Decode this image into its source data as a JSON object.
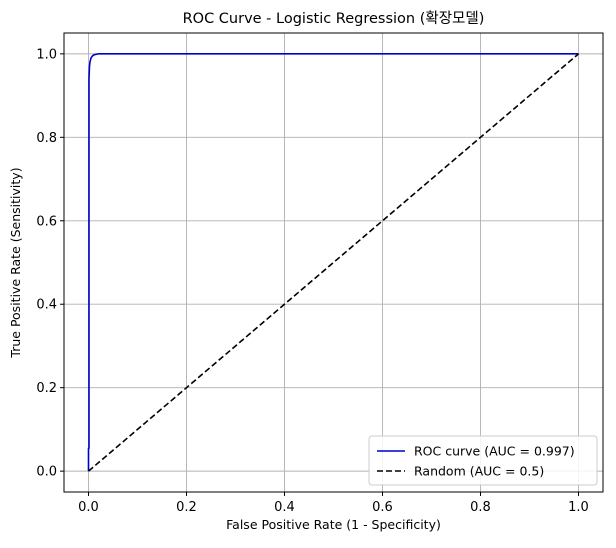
{
  "chart_data": {
    "type": "line",
    "title": "ROC Curve - Logistic Regression (확장모델)",
    "xlabel": "False Positive Rate (1 - Specificity)",
    "ylabel": "True Positive Rate (Sensitivity)",
    "xlim": [
      -0.05,
      1.05
    ],
    "ylim": [
      -0.05,
      1.05
    ],
    "xticks": [
      0.0,
      0.2,
      0.4,
      0.6,
      0.8,
      1.0
    ],
    "yticks": [
      0.0,
      0.2,
      0.4,
      0.6,
      0.8,
      1.0
    ],
    "xtick_labels": [
      "0.0",
      "0.2",
      "0.4",
      "0.6",
      "0.8",
      "1.0"
    ],
    "ytick_labels": [
      "0.0",
      "0.2",
      "0.4",
      "0.6",
      "0.8",
      "1.0"
    ],
    "grid": true,
    "legend_position": "lower-right",
    "series": [
      {
        "name": "ROC curve (AUC = 0.997)",
        "color": "#0000cc",
        "style": "solid",
        "x": [
          0.0,
          0.0,
          0.001,
          0.001,
          0.002,
          0.003,
          0.005,
          0.008,
          0.012,
          0.02,
          0.05,
          0.2,
          0.5,
          1.0
        ],
        "y": [
          0.0,
          0.055,
          0.055,
          0.94,
          0.97,
          0.98,
          0.99,
          0.995,
          0.998,
          1.0,
          1.0,
          1.0,
          1.0,
          1.0
        ]
      },
      {
        "name": "Random (AUC = 0.5)",
        "color": "#000000",
        "style": "dashed",
        "x": [
          0.0,
          1.0
        ],
        "y": [
          0.0,
          1.0
        ]
      }
    ]
  }
}
